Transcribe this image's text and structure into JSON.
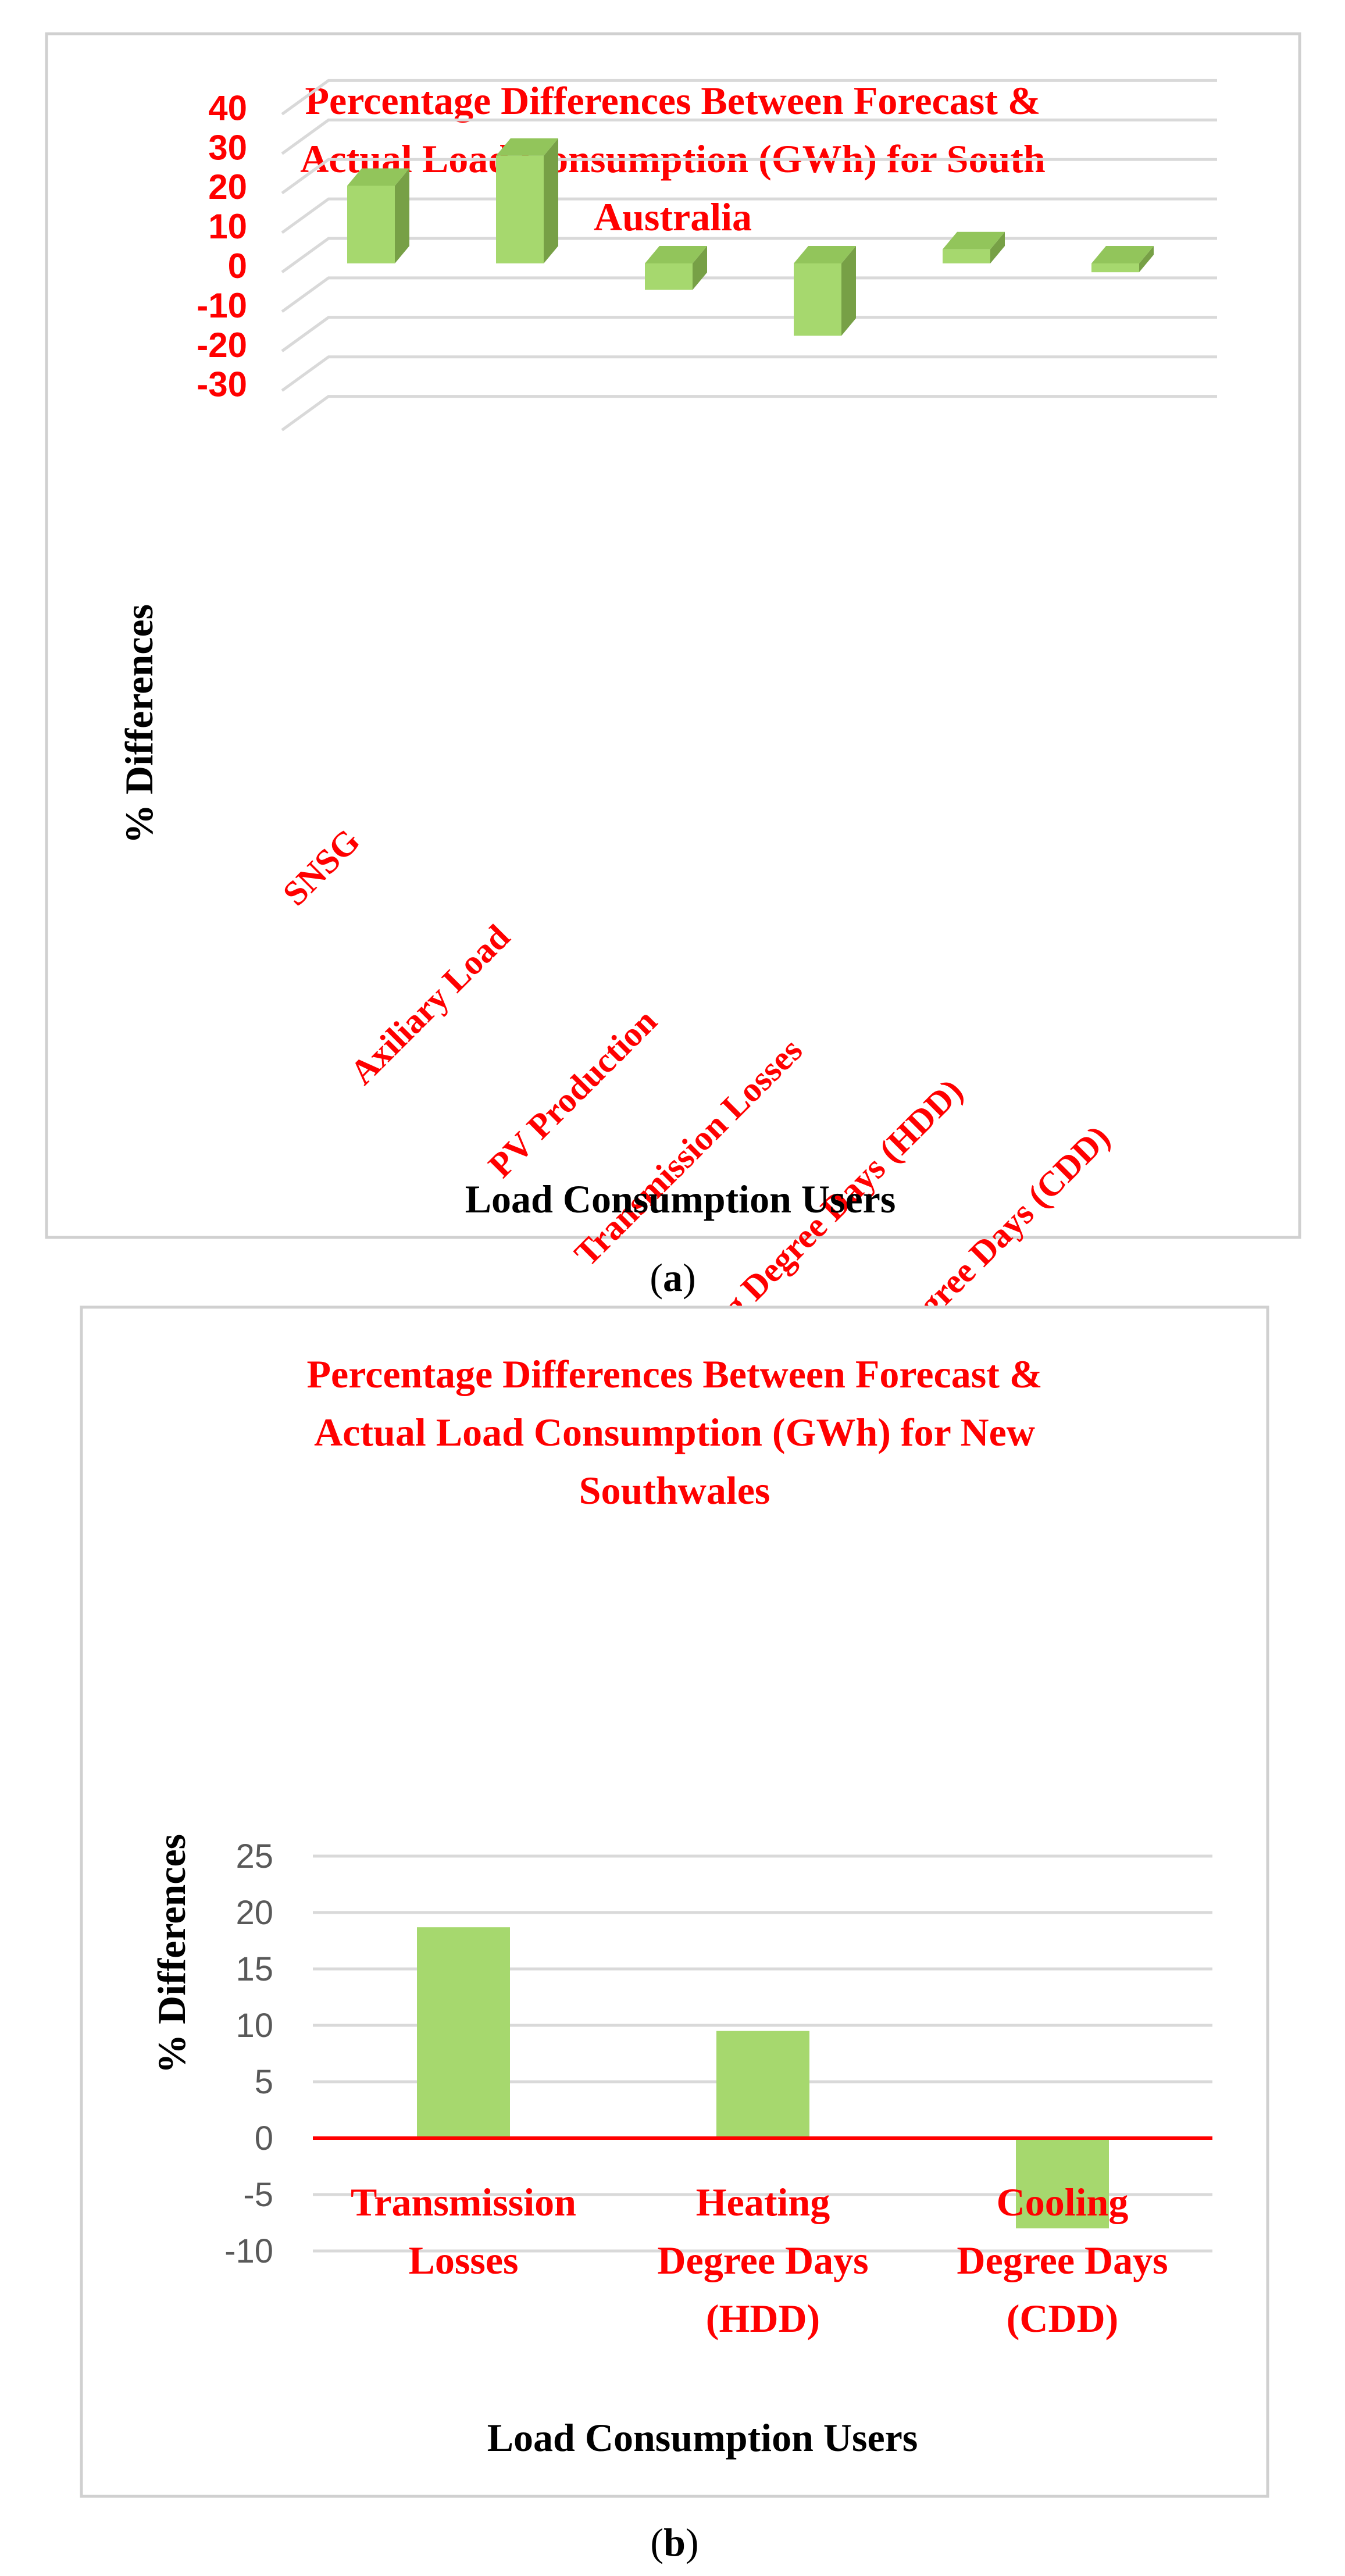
{
  "colors": {
    "accent": "#ff0000",
    "bar_front": "#a6d86e",
    "bar_side": "#77a046",
    "bar_top": "#92c55b",
    "grid": "#d9d9d9",
    "border": "#d0d0d0",
    "tick_gray": "#595959"
  },
  "charts": [
    {
      "id": "a",
      "caption_open": "(",
      "caption_letter": "a",
      "caption_close": ")",
      "title_lines": [
        "Percentage Differences Between Forecast &",
        "Actual Load Consumption (GWh) for South",
        "Australia"
      ]
    },
    {
      "id": "b",
      "caption_open": "(",
      "caption_letter": "b",
      "caption_close": ")",
      "title_lines": [
        "Percentage Differences Between Forecast &",
        "Actual Load Consumption (GWh) for New",
        "Southwales"
      ]
    }
  ],
  "chart_data": [
    {
      "type": "bar",
      "style": "3d-column",
      "title": "Percentage Differences Between Forecast & Actual Load Consumption (GWh) for South Australia",
      "xlabel": "Load Consumption Users",
      "ylabel": "% Differences",
      "categories": [
        "SNSG",
        "Axiliary Load",
        "PV Production",
        "Transmission Losses",
        "Heating Degree Days (HDD)",
        "Cooling Degree Days (CDD)"
      ],
      "values": [
        22,
        30.5,
        -7.5,
        -20.5,
        4,
        -2.5
      ],
      "yticks": [
        40,
        30,
        20,
        10,
        0,
        -10,
        -20,
        -30
      ],
      "ylim": [
        -30,
        40
      ],
      "grid": true
    },
    {
      "type": "bar",
      "title": "Percentage Differences Between Forecast & Actual Load Consumption (GWh) for New Southwales",
      "xlabel": "Load Consumption Users",
      "ylabel": "% Differences",
      "categories": [
        "Transmission Losses",
        "Heating Degree Days (HDD)",
        "Cooling Degree Days (CDD)"
      ],
      "category_lines": [
        [
          "Transmission",
          "Losses"
        ],
        [
          "Heating",
          "Degree Days",
          "(HDD)"
        ],
        [
          "Cooling",
          "Degree Days",
          "(CDD)"
        ]
      ],
      "values": [
        18.7,
        9.5,
        -8
      ],
      "yticks": [
        25,
        20,
        15,
        10,
        5,
        0,
        -5,
        -10
      ],
      "ylim": [
        -10,
        25
      ],
      "grid": true
    }
  ]
}
